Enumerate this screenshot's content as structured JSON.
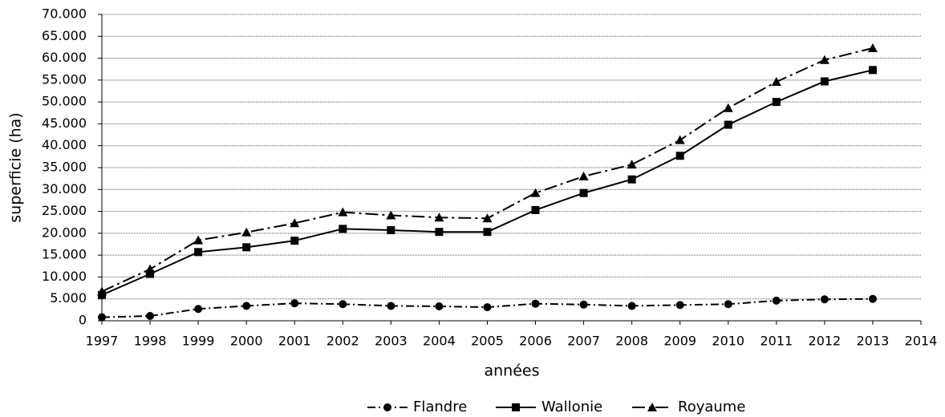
{
  "chart_data": {
    "type": "line",
    "y_label": "superficie (ha)",
    "x_label": "années",
    "x": [
      1997,
      1998,
      1999,
      2000,
      2001,
      2002,
      2003,
      2004,
      2005,
      2006,
      2007,
      2008,
      2009,
      2010,
      2011,
      2012,
      2013
    ],
    "series": [
      {
        "name": "Flandre",
        "color": "#000000",
        "marker": "circle",
        "line_style": "dash-dot",
        "values": [
          800,
          1100,
          2700,
          3400,
          4000,
          3800,
          3400,
          3300,
          3100,
          3900,
          3700,
          3400,
          3600,
          3800,
          4600,
          4900,
          5000
        ]
      },
      {
        "name": "Wallonie",
        "color": "#000000",
        "marker": "square",
        "line_style": "solid",
        "values": [
          5900,
          10700,
          15700,
          16800,
          18300,
          21000,
          20700,
          20300,
          20300,
          25300,
          29200,
          32300,
          37700,
          44800,
          50000,
          54700,
          57300
        ]
      },
      {
        "name": "Royaume",
        "color": "#000000",
        "marker": "triangle",
        "line_style": "long-dash-dot",
        "values": [
          6700,
          11800,
          18400,
          20200,
          22300,
          24800,
          24100,
          23600,
          23400,
          29200,
          33000,
          35700,
          41300,
          48600,
          54600,
          59600,
          62300
        ]
      }
    ],
    "xlim": [
      1997,
      2014
    ],
    "xticks": [
      1997,
      1998,
      1999,
      2000,
      2001,
      2002,
      2003,
      2004,
      2005,
      2006,
      2007,
      2008,
      2009,
      2010,
      2011,
      2012,
      2013,
      2014
    ],
    "ylim": [
      0,
      70000
    ],
    "yticks": [
      0,
      {
        "value": 5000,
        "label": "5.000"
      },
      {
        "value": 10000,
        "label": "10.000"
      },
      {
        "value": 15000,
        "label": "15.000"
      },
      {
        "value": 20000,
        "label": "20.000"
      },
      {
        "value": 25000,
        "label": "25.000"
      },
      {
        "value": 30000,
        "label": "30.000"
      },
      {
        "value": 35000,
        "label": "35.000"
      },
      {
        "value": 40000,
        "label": "40.000"
      },
      {
        "value": 45000,
        "label": "45.000"
      },
      {
        "value": 50000,
        "label": "50.000"
      },
      {
        "value": 55000,
        "label": "55.000"
      },
      {
        "value": 60000,
        "label": "60.000"
      },
      {
        "value": 65000,
        "label": "65.000"
      },
      {
        "value": 70000,
        "label": "70.000"
      }
    ],
    "grid": true,
    "legend": "bottom"
  }
}
